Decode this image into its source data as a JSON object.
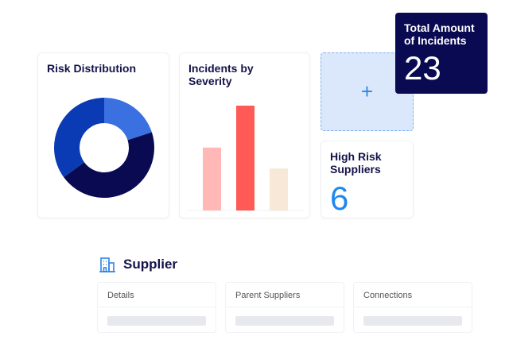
{
  "cards": {
    "risk_title": "Risk Distribution",
    "severity_title": "Incidents by Severity",
    "add_icon": "plus-icon",
    "high_risk_title": "High Risk Suppliers",
    "high_risk_value": "6",
    "total_title": "Total Amount of Incidents",
    "total_value": "23"
  },
  "supplier": {
    "icon": "building-icon",
    "title": "Supplier",
    "tables": [
      {
        "label": "Details"
      },
      {
        "label": "Parent Suppliers"
      },
      {
        "label": "Connections"
      }
    ]
  },
  "colors": {
    "navy": "#0a0a52",
    "accent": "#1e88f0"
  },
  "chart_data": [
    {
      "type": "pie",
      "title": "Risk Distribution",
      "donut": true,
      "values": [
        20,
        45,
        35
      ],
      "colors": [
        "#3b70e0",
        "#0a0a52",
        "#0a3bb4"
      ]
    },
    {
      "type": "bar",
      "title": "Incidents by Severity",
      "categories": [
        "",
        "",
        ""
      ],
      "values": [
        3,
        5,
        2
      ],
      "colors": [
        "#ffb8b5",
        "#ff5a55",
        "#f8e8d8"
      ]
    }
  ]
}
